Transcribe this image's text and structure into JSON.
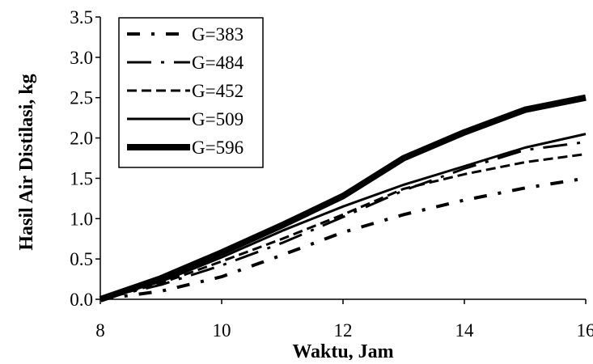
{
  "chart_data": {
    "type": "line",
    "title": "",
    "xlabel": "Waktu, Jam",
    "ylabel": "Hasil Air Distilasi, kg",
    "xlim": [
      8,
      16
    ],
    "ylim": [
      0,
      3.5
    ],
    "xticks": [
      8,
      10,
      12,
      14,
      16
    ],
    "xtick_labels": [
      "8",
      "10",
      "12",
      "14",
      "16"
    ],
    "yticks": [
      0,
      0.5,
      1,
      1.5,
      2,
      2.5,
      3,
      3.5
    ],
    "ytick_labels": [
      "0.0",
      "0.5",
      "1.0",
      "1.5",
      "2.0",
      "2.5",
      "3.0",
      "3.5"
    ],
    "grid": false,
    "legend_position": "top-left",
    "x": [
      8,
      9,
      10,
      11,
      12,
      13,
      14,
      15,
      16
    ],
    "series": [
      {
        "name": "G=383",
        "dash": "dash-dot",
        "width": 4,
        "color": "#000000",
        "values": [
          0.0,
          0.1,
          0.28,
          0.55,
          0.83,
          1.05,
          1.23,
          1.38,
          1.5
        ]
      },
      {
        "name": "G=484",
        "dash": "long-dash-dot",
        "width": 3,
        "color": "#000000",
        "values": [
          0.0,
          0.18,
          0.42,
          0.7,
          1.02,
          1.35,
          1.62,
          1.85,
          1.95
        ]
      },
      {
        "name": "G=452",
        "dash": "dash",
        "width": 3,
        "color": "#000000",
        "values": [
          0.0,
          0.2,
          0.47,
          0.75,
          1.05,
          1.37,
          1.55,
          1.7,
          1.8
        ]
      },
      {
        "name": "G=509",
        "dash": "solid",
        "width": 3,
        "color": "#000000",
        "values": [
          0.0,
          0.22,
          0.52,
          0.85,
          1.15,
          1.42,
          1.65,
          1.88,
          2.05
        ]
      },
      {
        "name": "G=596",
        "dash": "solid",
        "width": 8,
        "color": "#000000",
        "values": [
          0.0,
          0.26,
          0.58,
          0.92,
          1.28,
          1.75,
          2.07,
          2.35,
          2.5
        ]
      }
    ]
  }
}
